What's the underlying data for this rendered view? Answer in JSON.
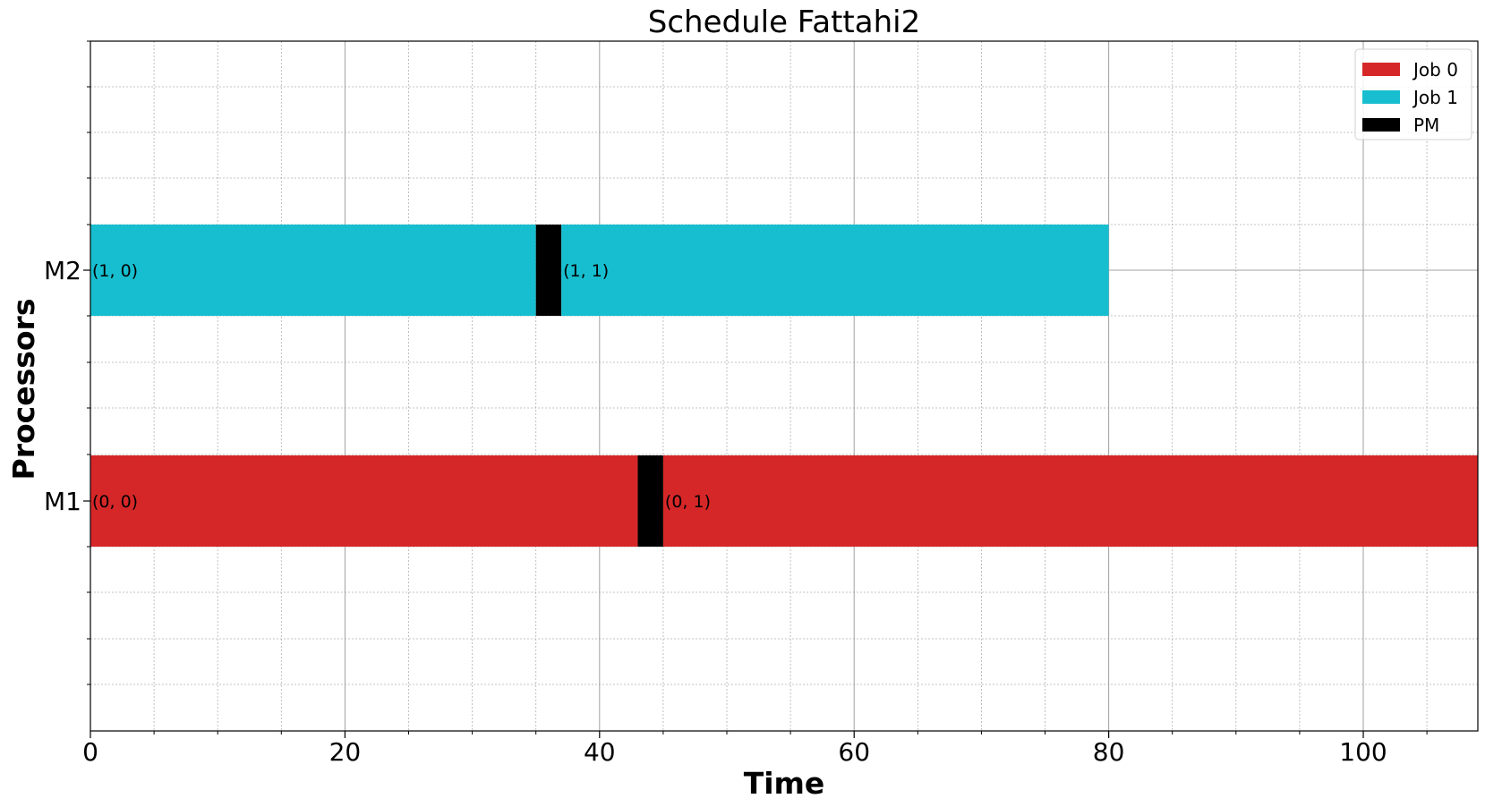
{
  "chart_data": {
    "type": "gantt",
    "title": "Schedule Fattahi2",
    "xlabel": "Time",
    "ylabel": "Processors",
    "xlim": [
      0,
      109
    ],
    "x_ticks": [
      0,
      20,
      40,
      60,
      80,
      100
    ],
    "x_minor_step": 5,
    "grid": true,
    "processors": [
      "M1",
      "M2"
    ],
    "legend": {
      "placement": "top-right",
      "entries": [
        {
          "name": "Job 0",
          "color": "#d62728"
        },
        {
          "name": "Job 1",
          "color": "#17becf"
        },
        {
          "name": "PM",
          "color": "#000000"
        }
      ]
    },
    "tasks": [
      {
        "processor": "M2",
        "job": "Job 1",
        "start": 0,
        "end": 35,
        "label": "(1, 0)",
        "color": "#17becf"
      },
      {
        "processor": "M2",
        "job": "PM",
        "start": 35,
        "end": 37,
        "label": "",
        "color": "#000000"
      },
      {
        "processor": "M2",
        "job": "Job 1",
        "start": 37,
        "end": 80,
        "label": "(1, 1)",
        "color": "#17becf"
      },
      {
        "processor": "M1",
        "job": "Job 0",
        "start": 0,
        "end": 43,
        "label": "(0, 0)",
        "color": "#d62728"
      },
      {
        "processor": "M1",
        "job": "PM",
        "start": 43,
        "end": 45,
        "label": "",
        "color": "#000000"
      },
      {
        "processor": "M1",
        "job": "Job 0",
        "start": 45,
        "end": 109,
        "label": "(0, 1)",
        "color": "#d62728"
      }
    ]
  }
}
